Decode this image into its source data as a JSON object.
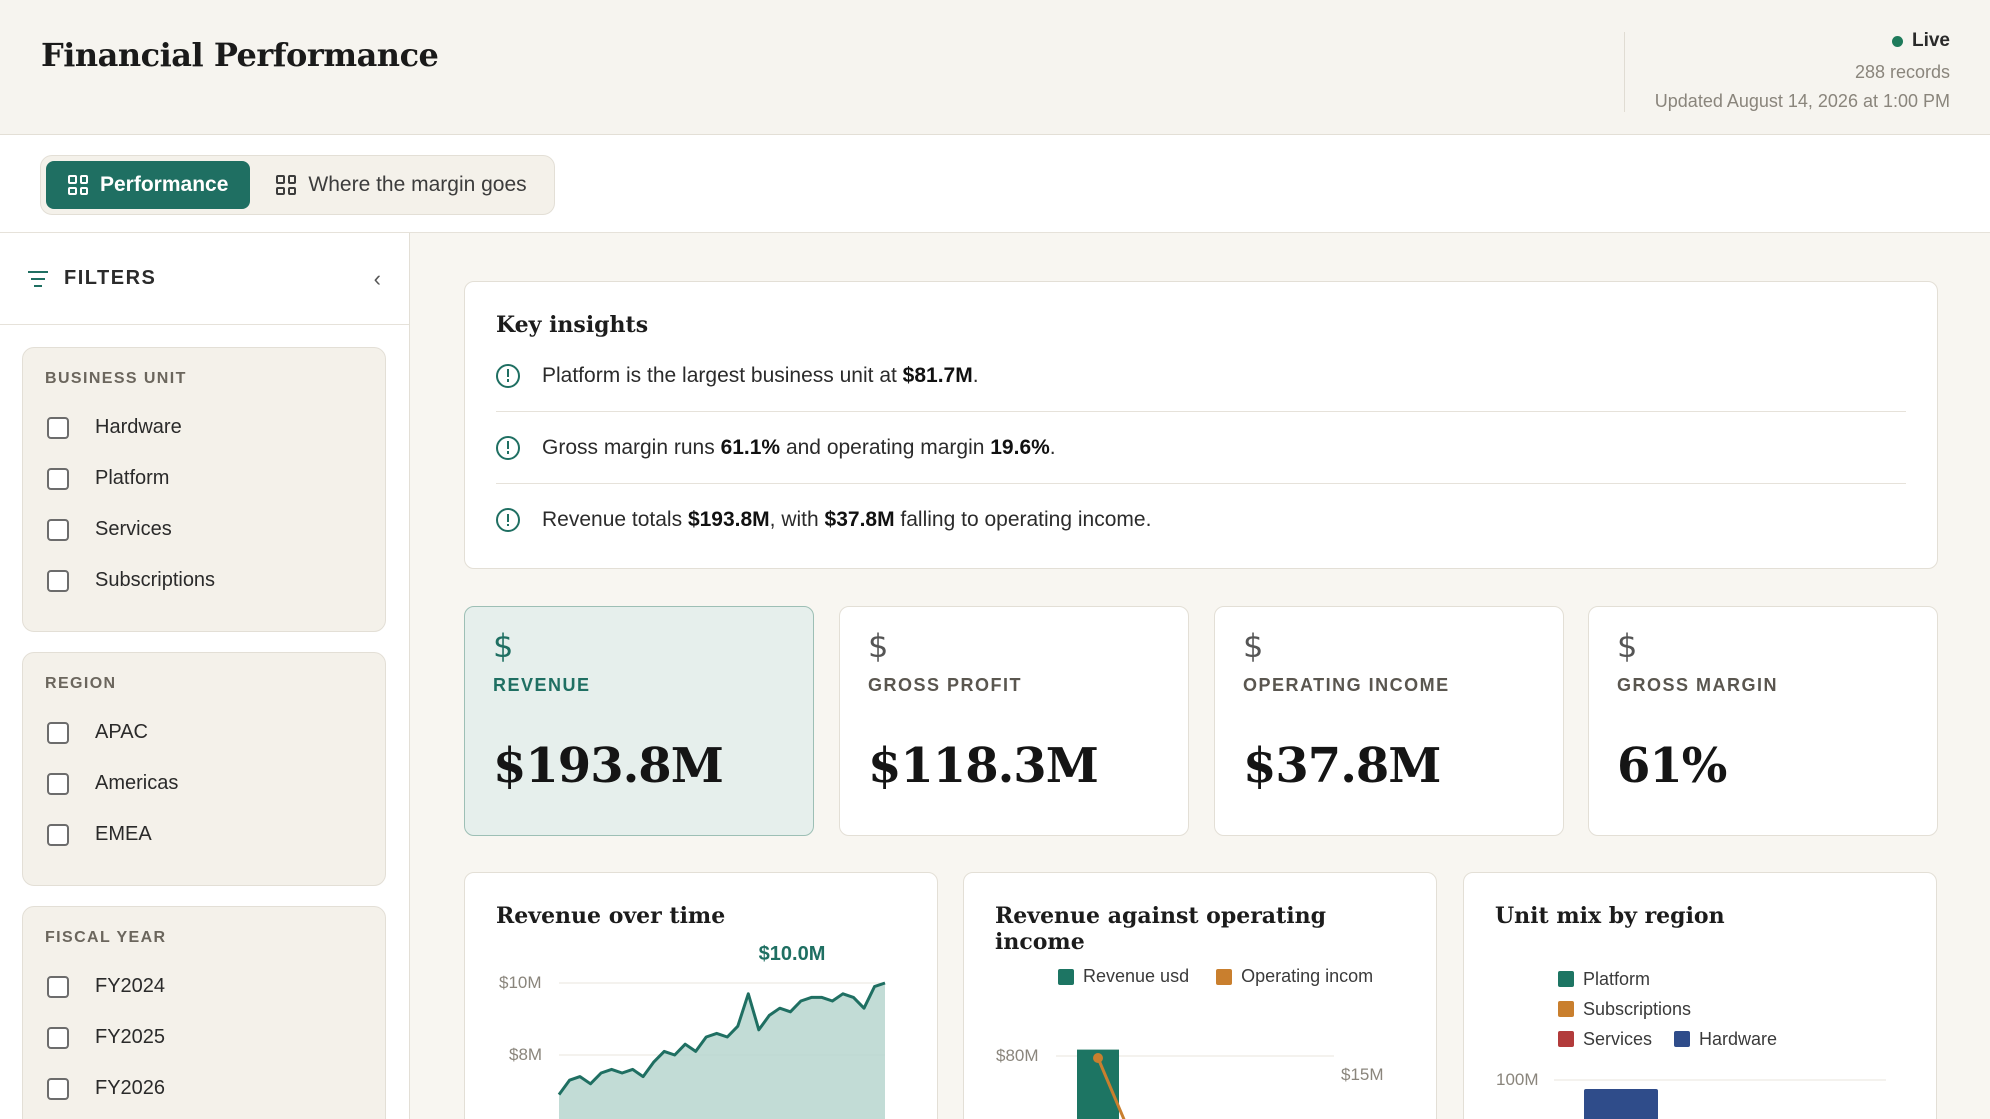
{
  "header": {
    "title": "Financial Performance",
    "status": "Live",
    "records": "288 records",
    "updated": "Updated August 14, 2026 at 1:00 PM"
  },
  "tabs": [
    {
      "label": "Performance",
      "icon": "grid-icon",
      "active": true
    },
    {
      "label": "Where the margin goes",
      "icon": "grid-icon",
      "active": false
    }
  ],
  "sidebar": {
    "title": "FILTERS",
    "groups": [
      {
        "title": "BUSINESS UNIT",
        "options": [
          "Hardware",
          "Platform",
          "Services",
          "Subscriptions"
        ]
      },
      {
        "title": "REGION",
        "options": [
          "APAC",
          "Americas",
          "EMEA"
        ]
      },
      {
        "title": "FISCAL YEAR",
        "options": [
          "FY2024",
          "FY2025",
          "FY2026"
        ]
      }
    ]
  },
  "insights": {
    "title": "Key insights",
    "items": [
      {
        "pre": "Platform is the largest business unit at ",
        "b1": "$81.7M",
        "mid": ".",
        "b2": "",
        "post": ""
      },
      {
        "pre": "Gross margin runs ",
        "b1": "61.1%",
        "mid": " and operating margin ",
        "b2": "19.6%",
        "post": "."
      },
      {
        "pre": "Revenue totals ",
        "b1": "$193.8M",
        "mid": ", with ",
        "b2": "$37.8M",
        "post": " falling to operating income."
      }
    ]
  },
  "kpis": [
    {
      "label": "REVENUE",
      "value": "$193.8M",
      "icon": "dollar-icon",
      "active": true
    },
    {
      "label": "GROSS PROFIT",
      "value": "$118.3M",
      "icon": "dollar-icon",
      "active": false
    },
    {
      "label": "OPERATING INCOME",
      "value": "$37.8M",
      "icon": "dollar-icon",
      "active": false
    },
    {
      "label": "GROSS MARGIN",
      "value": "61%",
      "icon": "dollar-icon",
      "active": false
    }
  ],
  "colors": {
    "accent": "#1f6f62",
    "revenue": "#1d7563",
    "operating_income": "#c97f2e",
    "platform": "#1d7563",
    "subscriptions": "#c97f2e",
    "services": "#b23b3b",
    "hardware": "#2f4c8a"
  },
  "chart_data": [
    {
      "type": "area",
      "title": "Revenue over time",
      "y_ticks": [
        "$10M",
        "$8M"
      ],
      "ylim": [
        4,
        10.3
      ],
      "annotation": "$10.0M",
      "values": [
        6.9,
        7.3,
        7.4,
        7.2,
        7.5,
        7.6,
        7.5,
        7.6,
        7.4,
        7.8,
        8.1,
        8.0,
        8.3,
        8.1,
        8.5,
        8.6,
        8.5,
        8.8,
        9.7,
        8.7,
        9.1,
        9.3,
        9.2,
        9.5,
        9.6,
        9.6,
        9.5,
        9.7,
        9.6,
        9.3,
        9.9,
        10.0
      ]
    },
    {
      "type": "bar",
      "title": "Revenue against operating income",
      "series": [
        {
          "name": "Revenue usd",
          "values": [
            82
          ]
        },
        {
          "name": "Operating incom",
          "values": [
            15
          ]
        }
      ],
      "y_left_ticks": [
        "$80M"
      ],
      "y_right_ticks": [
        "$15M"
      ],
      "ylim_left": [
        0,
        90
      ],
      "ylim_right": [
        0,
        16.5
      ]
    },
    {
      "type": "bar",
      "title": "Unit mix by region",
      "series": [
        {
          "name": "Platform"
        },
        {
          "name": "Subscriptions"
        },
        {
          "name": "Services"
        },
        {
          "name": "Hardware"
        }
      ],
      "y_ticks": [
        "100M"
      ],
      "ylim": [
        0,
        110
      ],
      "values": [
        97
      ]
    }
  ]
}
